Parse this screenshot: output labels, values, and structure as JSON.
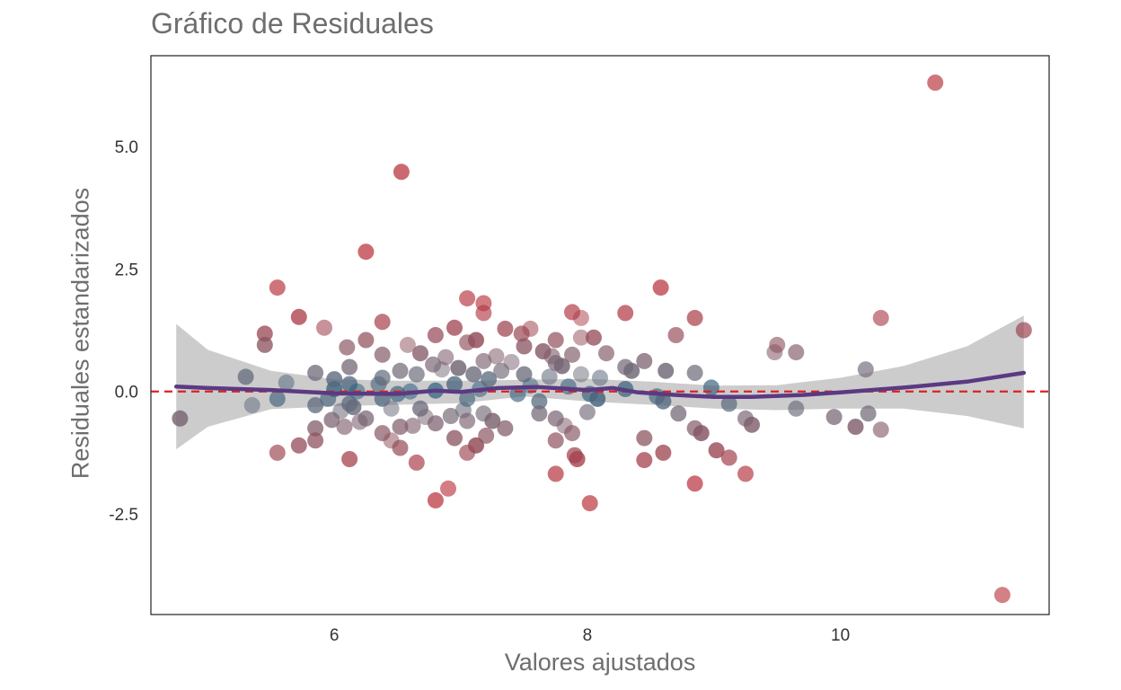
{
  "chart_data": {
    "type": "scatter",
    "title": "Gráfico de Residuales",
    "xlabel": "Valores ajustados",
    "ylabel": "Residuales estandarizados",
    "xlim": [
      4.55,
      11.65
    ],
    "ylim": [
      -4.55,
      6.85
    ],
    "xticks": [
      {
        "value": 6,
        "label": "6"
      },
      {
        "value": 8,
        "label": "8"
      },
      {
        "value": 10,
        "label": "10"
      }
    ],
    "yticks": [
      {
        "value": 5,
        "label": "5.0"
      },
      {
        "value": 2.5,
        "label": "2.5"
      },
      {
        "value": 0,
        "label": "0.0"
      },
      {
        "value": -2.5,
        "label": "-2.5"
      }
    ],
    "reference_line": {
      "y": 0,
      "style": "dashed",
      "color": "#dd2222"
    },
    "grid": false,
    "legend": "none",
    "colors": {
      "smooth": "#5b3a82",
      "band": "#cccccc",
      "low_residual": "#2e5f7f",
      "high_residual": "#b8323c",
      "neutral": "#6b6b7a",
      "frame": "#333333"
    },
    "smooth_line": {
      "x": [
        4.75,
        5.0,
        5.5,
        6.0,
        6.5,
        6.8,
        7.0,
        7.3,
        7.6,
        8.0,
        8.2,
        8.4,
        8.7,
        9.0,
        9.3,
        9.7,
        10.0,
        10.5,
        11.0,
        11.45
      ],
      "y": [
        0.1,
        0.07,
        0.03,
        -0.04,
        -0.05,
        0.02,
        -0.01,
        0.07,
        0.09,
        0.03,
        0.07,
        -0.02,
        -0.07,
        -0.11,
        -0.11,
        -0.07,
        -0.02,
        0.08,
        0.2,
        0.38
      ]
    },
    "confidence_band": {
      "x": [
        4.75,
        5.0,
        5.5,
        6.0,
        6.5,
        7.0,
        7.5,
        8.0,
        8.5,
        9.0,
        9.5,
        10.0,
        10.5,
        11.0,
        11.45
      ],
      "upper": [
        1.38,
        0.85,
        0.42,
        0.25,
        0.22,
        0.22,
        0.24,
        0.26,
        0.2,
        0.12,
        0.13,
        0.28,
        0.52,
        0.92,
        1.55
      ],
      "lower": [
        -1.18,
        -0.72,
        -0.36,
        -0.3,
        -0.27,
        -0.24,
        -0.1,
        -0.2,
        -0.27,
        -0.35,
        -0.38,
        -0.35,
        -0.35,
        -0.5,
        -0.75
      ]
    },
    "points": [
      {
        "x": 10.75,
        "y": 6.3
      },
      {
        "x": 11.28,
        "y": -4.15
      },
      {
        "x": 6.53,
        "y": 4.48
      },
      {
        "x": 6.25,
        "y": 2.85
      },
      {
        "x": 4.78,
        "y": -0.55
      },
      {
        "x": 5.3,
        "y": 0.3
      },
      {
        "x": 5.35,
        "y": -0.28
      },
      {
        "x": 5.45,
        "y": 1.18
      },
      {
        "x": 5.45,
        "y": 0.95
      },
      {
        "x": 5.55,
        "y": -0.15
      },
      {
        "x": 5.55,
        "y": 2.12
      },
      {
        "x": 5.55,
        "y": -1.25
      },
      {
        "x": 5.62,
        "y": 0.18
      },
      {
        "x": 5.72,
        "y": 1.52
      },
      {
        "x": 5.72,
        "y": -1.1
      },
      {
        "x": 5.85,
        "y": 0.38
      },
      {
        "x": 5.85,
        "y": -0.28
      },
      {
        "x": 5.85,
        "y": -0.75
      },
      {
        "x": 5.85,
        "y": -1.0
      },
      {
        "x": 5.92,
        "y": 1.3
      },
      {
        "x": 5.95,
        "y": -0.15
      },
      {
        "x": 5.98,
        "y": -0.58
      },
      {
        "x": 6.0,
        "y": 0.05
      },
      {
        "x": 6.0,
        "y": 0.25
      },
      {
        "x": 6.05,
        "y": -0.4
      },
      {
        "x": 6.08,
        "y": -0.72
      },
      {
        "x": 6.1,
        "y": 0.9
      },
      {
        "x": 6.12,
        "y": 0.5
      },
      {
        "x": 6.12,
        "y": 0.15
      },
      {
        "x": 6.12,
        "y": -0.25
      },
      {
        "x": 6.12,
        "y": -1.38
      },
      {
        "x": 6.15,
        "y": -0.32
      },
      {
        "x": 6.18,
        "y": 0.0
      },
      {
        "x": 6.2,
        "y": -0.62
      },
      {
        "x": 6.25,
        "y": 1.05
      },
      {
        "x": 6.25,
        "y": -0.55
      },
      {
        "x": 6.35,
        "y": 0.15
      },
      {
        "x": 6.38,
        "y": 1.42
      },
      {
        "x": 6.38,
        "y": 0.75
      },
      {
        "x": 6.38,
        "y": 0.28
      },
      {
        "x": 6.38,
        "y": -0.15
      },
      {
        "x": 6.38,
        "y": -0.85
      },
      {
        "x": 6.45,
        "y": -0.35
      },
      {
        "x": 6.45,
        "y": -1.0
      },
      {
        "x": 6.5,
        "y": -0.05
      },
      {
        "x": 6.52,
        "y": 0.42
      },
      {
        "x": 6.52,
        "y": -0.72
      },
      {
        "x": 6.52,
        "y": -1.15
      },
      {
        "x": 6.58,
        "y": 0.95
      },
      {
        "x": 6.6,
        "y": 0.0
      },
      {
        "x": 6.62,
        "y": -0.7
      },
      {
        "x": 6.65,
        "y": -1.45
      },
      {
        "x": 6.65,
        "y": 0.35
      },
      {
        "x": 6.68,
        "y": 0.78
      },
      {
        "x": 6.68,
        "y": -0.35
      },
      {
        "x": 6.72,
        "y": -0.52
      },
      {
        "x": 6.78,
        "y": 0.55
      },
      {
        "x": 6.8,
        "y": 1.15
      },
      {
        "x": 6.8,
        "y": 0.02
      },
      {
        "x": 6.8,
        "y": -0.65
      },
      {
        "x": 6.8,
        "y": -2.22
      },
      {
        "x": 6.85,
        "y": 0.45
      },
      {
        "x": 6.88,
        "y": 0.7
      },
      {
        "x": 6.9,
        "y": -1.98
      },
      {
        "x": 6.92,
        "y": -0.5
      },
      {
        "x": 6.95,
        "y": 1.3
      },
      {
        "x": 6.95,
        "y": 0.15
      },
      {
        "x": 6.95,
        "y": -0.95
      },
      {
        "x": 6.98,
        "y": 0.48
      },
      {
        "x": 7.02,
        "y": -0.38
      },
      {
        "x": 7.05,
        "y": 1.9
      },
      {
        "x": 7.05,
        "y": 1.0
      },
      {
        "x": 7.05,
        "y": -0.15
      },
      {
        "x": 7.05,
        "y": -0.6
      },
      {
        "x": 7.05,
        "y": -1.25
      },
      {
        "x": 7.1,
        "y": 0.35
      },
      {
        "x": 7.12,
        "y": 1.05
      },
      {
        "x": 7.12,
        "y": -1.1
      },
      {
        "x": 7.15,
        "y": 0.05
      },
      {
        "x": 7.18,
        "y": 1.8
      },
      {
        "x": 7.18,
        "y": 1.6
      },
      {
        "x": 7.18,
        "y": 0.62
      },
      {
        "x": 7.18,
        "y": -0.45
      },
      {
        "x": 7.2,
        "y": -0.9
      },
      {
        "x": 7.22,
        "y": 0.25
      },
      {
        "x": 7.25,
        "y": -0.6
      },
      {
        "x": 7.28,
        "y": 0.72
      },
      {
        "x": 7.32,
        "y": 0.42
      },
      {
        "x": 7.35,
        "y": -0.75
      },
      {
        "x": 7.35,
        "y": 1.28
      },
      {
        "x": 7.4,
        "y": 0.6
      },
      {
        "x": 7.45,
        "y": -0.05
      },
      {
        "x": 7.48,
        "y": 1.18
      },
      {
        "x": 7.5,
        "y": 0.92
      },
      {
        "x": 7.5,
        "y": 0.35
      },
      {
        "x": 7.55,
        "y": 1.28
      },
      {
        "x": 7.55,
        "y": 0.12
      },
      {
        "x": 7.62,
        "y": -0.2
      },
      {
        "x": 7.62,
        "y": -0.45
      },
      {
        "x": 7.65,
        "y": 0.82
      },
      {
        "x": 7.7,
        "y": 0.3
      },
      {
        "x": 7.72,
        "y": 0.72
      },
      {
        "x": 7.75,
        "y": 0.58
      },
      {
        "x": 7.75,
        "y": 1.05
      },
      {
        "x": 7.75,
        "y": -0.55
      },
      {
        "x": 7.75,
        "y": -1.0
      },
      {
        "x": 7.75,
        "y": -1.68
      },
      {
        "x": 7.8,
        "y": 0.52
      },
      {
        "x": 7.82,
        "y": -0.7
      },
      {
        "x": 7.85,
        "y": 0.1
      },
      {
        "x": 7.88,
        "y": 1.62
      },
      {
        "x": 7.88,
        "y": 0.75
      },
      {
        "x": 7.88,
        "y": -0.85
      },
      {
        "x": 7.9,
        "y": -1.3
      },
      {
        "x": 7.92,
        "y": -1.38
      },
      {
        "x": 7.95,
        "y": 1.5
      },
      {
        "x": 7.95,
        "y": 0.35
      },
      {
        "x": 7.95,
        "y": 1.1
      },
      {
        "x": 8.0,
        "y": -0.42
      },
      {
        "x": 8.02,
        "y": -0.05
      },
      {
        "x": 8.02,
        "y": -2.28
      },
      {
        "x": 8.05,
        "y": 1.1
      },
      {
        "x": 8.08,
        "y": -0.15
      },
      {
        "x": 8.1,
        "y": 0.28
      },
      {
        "x": 8.15,
        "y": 0.78
      },
      {
        "x": 8.3,
        "y": 1.6
      },
      {
        "x": 8.3,
        "y": 0.5
      },
      {
        "x": 8.3,
        "y": 0.05
      },
      {
        "x": 8.35,
        "y": 0.42
      },
      {
        "x": 8.45,
        "y": 0.62
      },
      {
        "x": 8.45,
        "y": -0.95
      },
      {
        "x": 8.45,
        "y": -1.4
      },
      {
        "x": 8.55,
        "y": -0.1
      },
      {
        "x": 8.58,
        "y": 2.12
      },
      {
        "x": 8.6,
        "y": -0.2
      },
      {
        "x": 8.6,
        "y": -1.25
      },
      {
        "x": 8.62,
        "y": 0.42
      },
      {
        "x": 8.7,
        "y": 1.15
      },
      {
        "x": 8.72,
        "y": -0.45
      },
      {
        "x": 8.85,
        "y": 1.5
      },
      {
        "x": 8.85,
        "y": 0.38
      },
      {
        "x": 8.85,
        "y": -0.75
      },
      {
        "x": 8.85,
        "y": -1.88
      },
      {
        "x": 8.9,
        "y": -0.85
      },
      {
        "x": 8.98,
        "y": 0.08
      },
      {
        "x": 9.02,
        "y": -1.2
      },
      {
        "x": 9.12,
        "y": -0.25
      },
      {
        "x": 9.12,
        "y": -1.35
      },
      {
        "x": 9.25,
        "y": -0.55
      },
      {
        "x": 9.25,
        "y": -1.68
      },
      {
        "x": 9.3,
        "y": -0.68
      },
      {
        "x": 9.48,
        "y": 0.8
      },
      {
        "x": 9.5,
        "y": 0.95
      },
      {
        "x": 9.65,
        "y": 0.8
      },
      {
        "x": 9.65,
        "y": -0.35
      },
      {
        "x": 9.95,
        "y": -0.52
      },
      {
        "x": 10.12,
        "y": -0.72
      },
      {
        "x": 10.2,
        "y": 0.45
      },
      {
        "x": 10.22,
        "y": -0.45
      },
      {
        "x": 10.32,
        "y": 1.5
      },
      {
        "x": 10.32,
        "y": -0.78
      },
      {
        "x": 11.45,
        "y": 1.25
      }
    ]
  }
}
